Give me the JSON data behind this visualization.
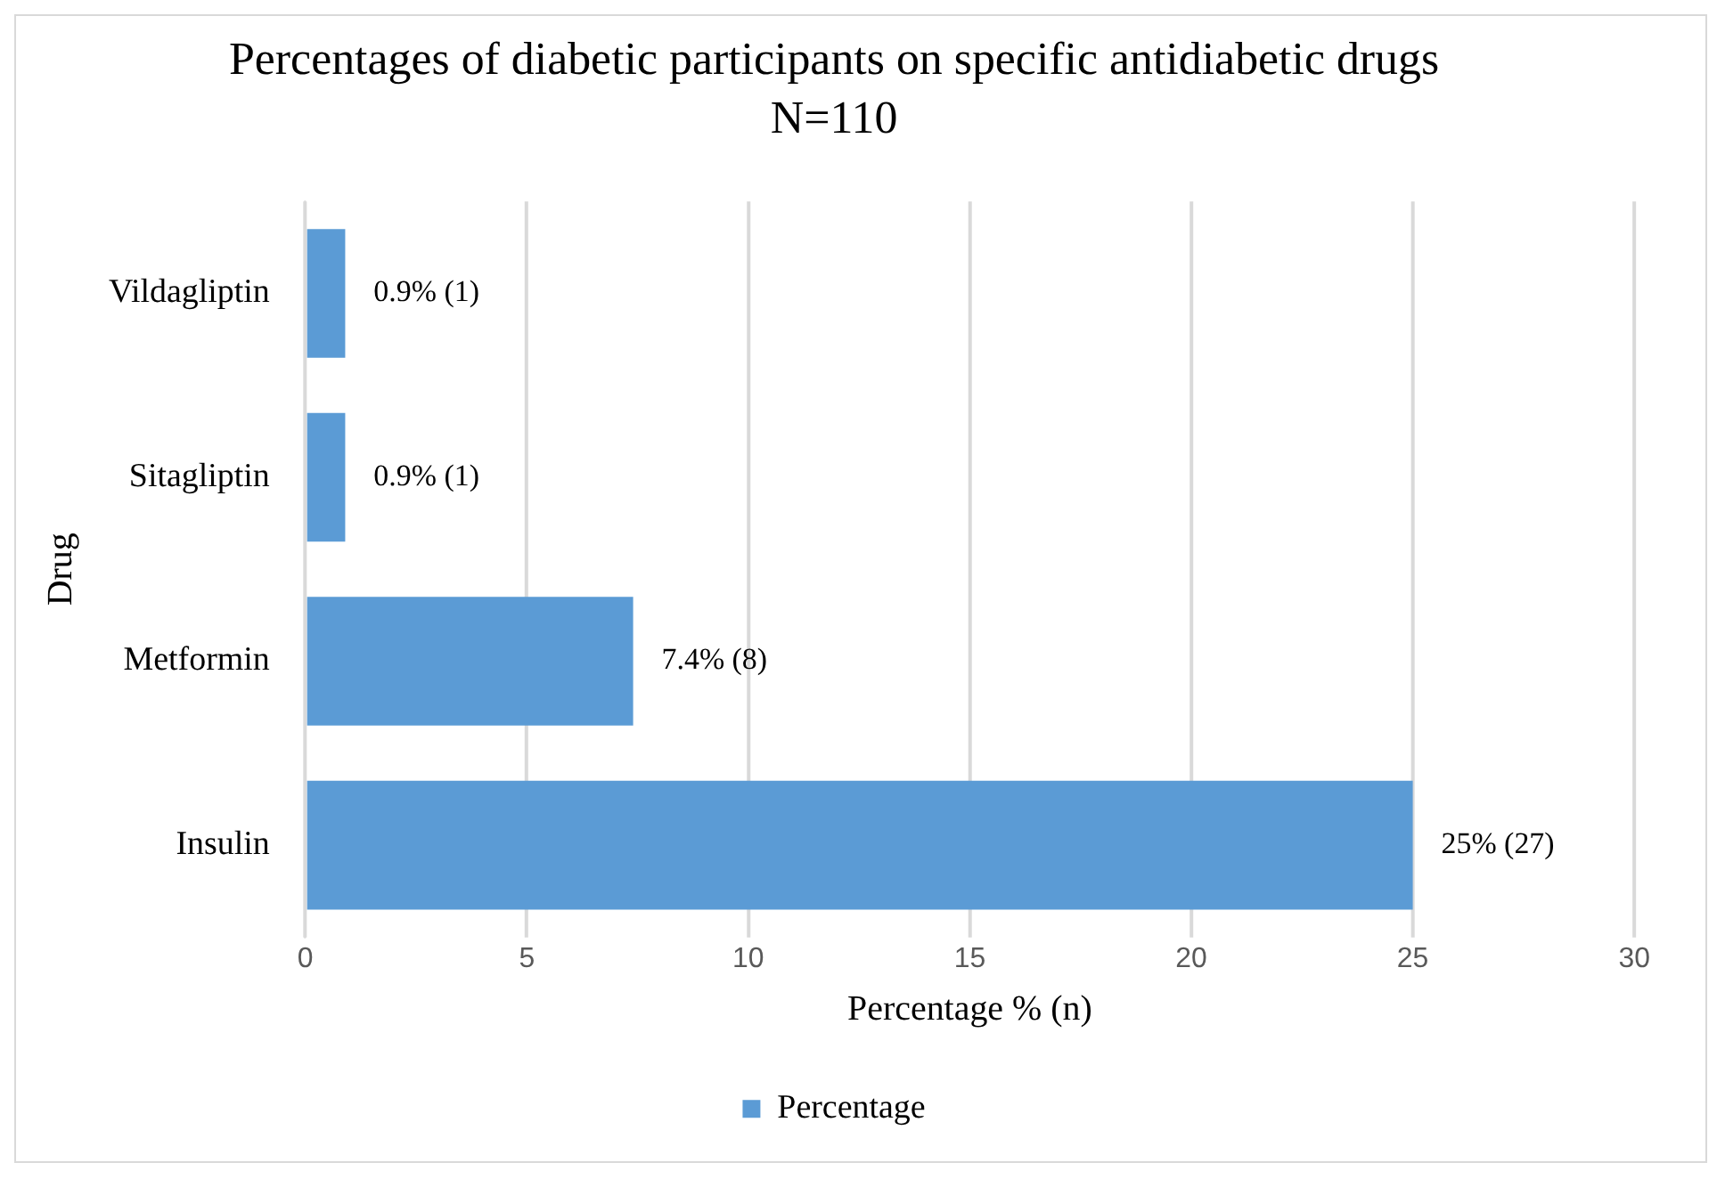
{
  "chart_data": {
    "type": "bar",
    "orientation": "horizontal",
    "title": "Percentages of diabetic participants on specific antidiabetic drugs",
    "subtitle": "N=110",
    "xlabel": "Percentage % (n)",
    "ylabel": "Drug",
    "categories": [
      "Vildagliptin",
      "Sitagliptin",
      "Metformin",
      "Insulin"
    ],
    "series": [
      {
        "name": "Percentage",
        "color": "#5b9bd5",
        "values": [
          0.9,
          0.9,
          7.4,
          25
        ],
        "value_labels": [
          "0.9% (1)",
          "0.9% (1)",
          "7.4% (8)",
          "25% (27)"
        ]
      }
    ],
    "xlim": [
      0,
      30
    ],
    "xticks": [
      0,
      5,
      10,
      15,
      20,
      25,
      30
    ],
    "grid": "x",
    "legend": "bottom"
  }
}
